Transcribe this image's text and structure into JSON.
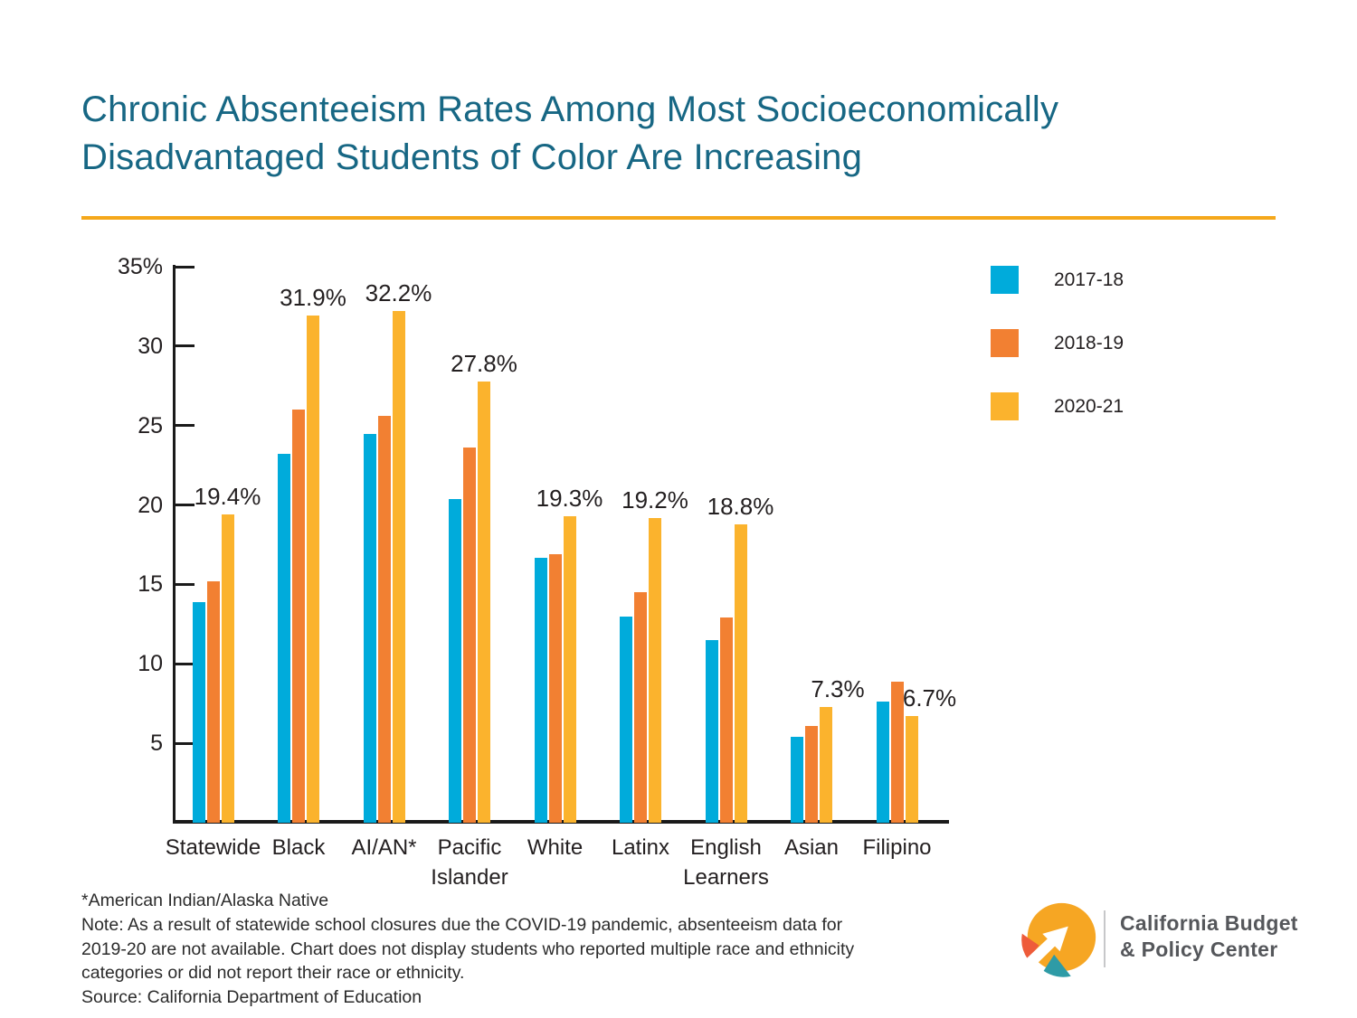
{
  "page": {
    "background": "#FFFFFF"
  },
  "header": {
    "title": "Chronic Absenteeism Rates Among Most Socioeconomically\nDisadvantaged Students of Color Are Increasing",
    "title_color": "#176784",
    "accent_rule_color": "#F5A81B"
  },
  "chart_data": {
    "type": "bar",
    "title": "Chronic Absenteeism Rates Among Most Socioeconomically Disadvantaged Students of Color Are Increasing",
    "categories": [
      "Statewide",
      "Black",
      "AI/AN*",
      "Pacific\nIslander",
      "White",
      "Latinx",
      "English\nLearners",
      "Asian",
      "Filipino"
    ],
    "series": [
      {
        "name": "2017-18",
        "color": "#00ABDB",
        "values": [
          13.9,
          23.2,
          24.5,
          20.4,
          16.7,
          13.0,
          11.5,
          5.4,
          7.6
        ]
      },
      {
        "name": "2018-19",
        "color": "#F28032",
        "values": [
          15.2,
          26.0,
          25.6,
          23.6,
          16.9,
          14.5,
          12.9,
          6.1,
          8.9
        ]
      },
      {
        "name": "2020-21",
        "color": "#FBB32D",
        "values": [
          19.4,
          31.9,
          32.2,
          27.8,
          19.3,
          19.2,
          18.8,
          7.3,
          6.7
        ]
      }
    ],
    "data_labels": [
      "19.4%",
      "31.9%",
      "32.2%",
      "27.8%",
      "19.3%",
      "19.2%",
      "18.8%",
      "7.3%",
      "6.7%"
    ],
    "data_label_series": "2020-21",
    "xlabel": "",
    "ylabel": "",
    "y_ticks": [
      "35%",
      "30",
      "25",
      "20",
      "15",
      "10",
      "5"
    ],
    "y_tick_values": [
      35,
      30,
      25,
      20,
      15,
      10,
      5
    ],
    "ylim": [
      0,
      35
    ],
    "grid": false,
    "legend_position": "upper-right-outside",
    "axis_color": "#1A1A1A",
    "label_color": "#231F20"
  },
  "legend": {
    "items": [
      {
        "label": "2017-18",
        "color": "#00ABDB"
      },
      {
        "label": "2018-19",
        "color": "#F28032"
      },
      {
        "label": "2020-21",
        "color": "#FBB32D"
      }
    ]
  },
  "footnotes": {
    "asterisk": "*American Indian/Alaska Native",
    "note": "Note: As a result of statewide school closures due the COVID-19 pandemic, absenteeism data for\n2019-20 are not available. Chart does not display students who reported multiple race and ethnicity\ncategories or did not report their race or ethnicity.",
    "source": "Source: California Department of Education"
  },
  "logo": {
    "org_line1": "California Budget",
    "org_line2": "& Policy Center",
    "text_color": "#55575B",
    "circle_color": "#F6A623",
    "wedge_orange": "#EE5B3A",
    "wedge_teal": "#2E9BA6"
  }
}
